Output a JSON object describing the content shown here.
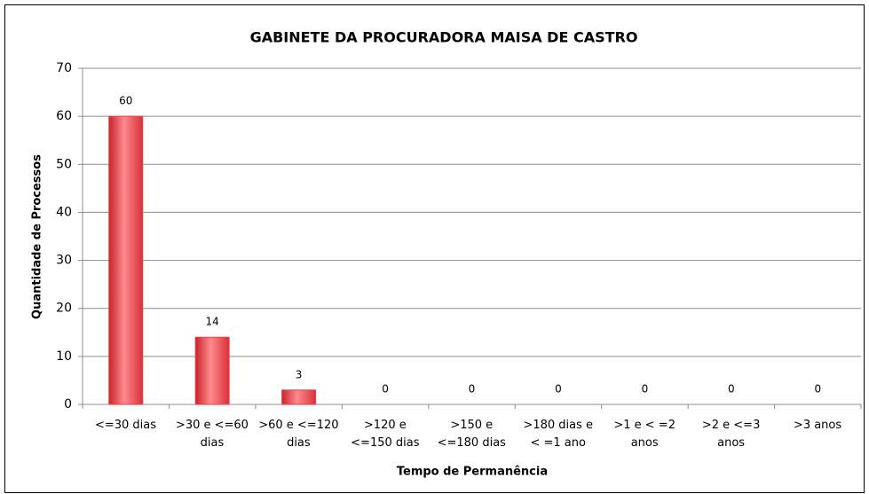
{
  "chart_data": {
    "type": "bar",
    "title": "GABINETE DA PROCURADORA MAISA DE CASTRO",
    "x_label": "Tempo de Permanência",
    "y_label": "Quantidade de Processos",
    "categories": [
      "<=30 dias",
      ">30 e <=60\ndias",
      ">60 e <=120\ndias",
      ">120 e\n<=150 dias",
      ">150 e\n<=180 dias",
      ">180 dias e\n< =1 ano",
      ">1 e < =2\nanos",
      ">2 e <=3\nanos",
      ">3 anos"
    ],
    "values": [
      60,
      14,
      3,
      0,
      0,
      0,
      0,
      0,
      0
    ],
    "color": "#ee3f47",
    "ylim": [
      0,
      70
    ],
    "yticks": [
      0,
      10,
      20,
      30,
      40,
      50,
      60,
      70
    ],
    "grid": true
  }
}
